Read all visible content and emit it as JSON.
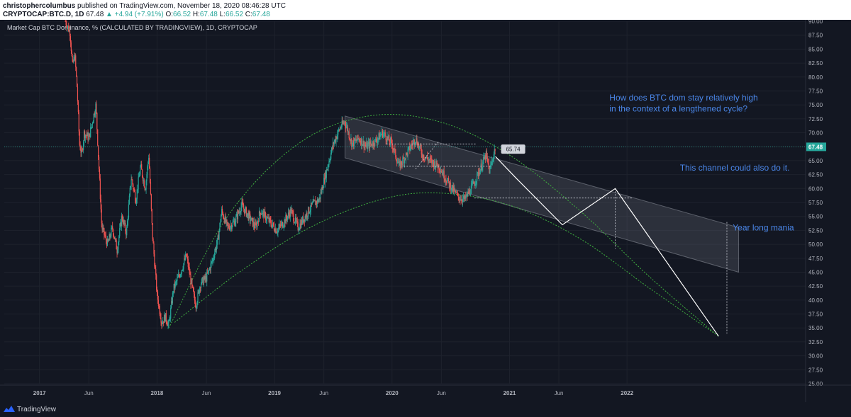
{
  "header": {
    "author": "christophercolumbus",
    "published": "published on TradingView.com, November 18, 2020 08:46:28 UTC",
    "symbol": "CRYPTOCAP:BTC.D, 1D",
    "last": "67.48",
    "change": "▲ +4.94 (+7.91%)",
    "o_label": "O:",
    "o_value": "66.52",
    "h_label": "H:",
    "h_value": "67.48",
    "l_label": "L:",
    "l_value": "66.52",
    "c_label": "C:",
    "c_value": "67.48"
  },
  "footer": {
    "brand": "TradingView"
  },
  "colors": {
    "background": "#131722",
    "axis_text": "#b2b5be",
    "up": "#26a69a",
    "down": "#ef5350",
    "arc": "#3fae3f",
    "annotation": "#4a86e8",
    "price_badge": "#d1d4dc"
  },
  "chart_data": {
    "type": "candlestick",
    "title": "Market Cap BTC Dominance, % (CALCULATED BY TRADINGVIEW), 1D, CRYPTOCAP",
    "y_axis": {
      "min": 25,
      "max": 90,
      "step": 2.5,
      "position": "right",
      "ticks": [
        "90.00",
        "87.50",
        "85.00",
        "82.50",
        "80.00",
        "77.50",
        "75.00",
        "72.50",
        "70.00",
        "67.50",
        "65.00",
        "62.50",
        "60.00",
        "57.50",
        "55.00",
        "52.50",
        "50.00",
        "47.50",
        "45.00",
        "42.50",
        "40.00",
        "37.50",
        "35.00",
        "32.50",
        "30.00",
        "27.50",
        "25.00"
      ]
    },
    "x_axis": {
      "ticks": [
        {
          "label": "2017",
          "t": 2017.0
        },
        {
          "label": "Jun",
          "t": 2017.42
        },
        {
          "label": "2018",
          "t": 2018.0
        },
        {
          "label": "Jun",
          "t": 2018.42
        },
        {
          "label": "2019",
          "t": 2019.0
        },
        {
          "label": "Jun",
          "t": 2019.42
        },
        {
          "label": "2020",
          "t": 2020.0
        },
        {
          "label": "Jun",
          "t": 2020.42
        },
        {
          "label": "2021",
          "t": 2021.0
        },
        {
          "label": "Jun",
          "t": 2021.42
        },
        {
          "label": "2022",
          "t": 2022.0
        }
      ]
    },
    "current_price": 67.48,
    "current_price_label": "67.48",
    "price_path": [
      [
        2017.22,
        90
      ],
      [
        2017.26,
        88
      ],
      [
        2017.28,
        82
      ],
      [
        2017.3,
        84
      ],
      [
        2017.32,
        78
      ],
      [
        2017.34,
        68
      ],
      [
        2017.36,
        66
      ],
      [
        2017.38,
        70
      ],
      [
        2017.42,
        69
      ],
      [
        2017.46,
        73
      ],
      [
        2017.48,
        75
      ],
      [
        2017.53,
        53
      ],
      [
        2017.58,
        50
      ],
      [
        2017.62,
        53
      ],
      [
        2017.66,
        49
      ],
      [
        2017.7,
        55
      ],
      [
        2017.74,
        52
      ],
      [
        2017.78,
        62
      ],
      [
        2017.82,
        58
      ],
      [
        2017.86,
        64
      ],
      [
        2017.9,
        60
      ],
      [
        2017.93,
        66
      ],
      [
        2017.96,
        52
      ],
      [
        2018.0,
        41
      ],
      [
        2018.04,
        36
      ],
      [
        2018.07,
        37
      ],
      [
        2018.1,
        35.5
      ],
      [
        2018.14,
        42
      ],
      [
        2018.2,
        45
      ],
      [
        2018.25,
        48
      ],
      [
        2018.3,
        42
      ],
      [
        2018.33,
        39
      ],
      [
        2018.37,
        43
      ],
      [
        2018.42,
        44
      ],
      [
        2018.47,
        47
      ],
      [
        2018.52,
        51
      ],
      [
        2018.55,
        56
      ],
      [
        2018.6,
        53
      ],
      [
        2018.66,
        54
      ],
      [
        2018.72,
        57
      ],
      [
        2018.78,
        55
      ],
      [
        2018.84,
        53
      ],
      [
        2018.88,
        56
      ],
      [
        2018.92,
        55
      ],
      [
        2018.96,
        54
      ],
      [
        2019.02,
        52.5
      ],
      [
        2019.08,
        54
      ],
      [
        2019.14,
        56
      ],
      [
        2019.2,
        53
      ],
      [
        2019.26,
        55
      ],
      [
        2019.32,
        57
      ],
      [
        2019.38,
        58
      ],
      [
        2019.44,
        63
      ],
      [
        2019.5,
        68
      ],
      [
        2019.56,
        71
      ],
      [
        2019.6,
        72
      ],
      [
        2019.66,
        68
      ],
      [
        2019.72,
        69
      ],
      [
        2019.78,
        67.5
      ],
      [
        2019.86,
        68.5
      ],
      [
        2019.92,
        70
      ],
      [
        2020.0,
        68
      ],
      [
        2020.06,
        64
      ],
      [
        2020.12,
        66
      ],
      [
        2020.2,
        69
      ],
      [
        2020.26,
        66
      ],
      [
        2020.32,
        65
      ],
      [
        2020.4,
        64
      ],
      [
        2020.48,
        61
      ],
      [
        2020.56,
        58.5
      ],
      [
        2020.62,
        58
      ],
      [
        2020.7,
        61
      ],
      [
        2020.76,
        64
      ],
      [
        2020.8,
        66
      ],
      [
        2020.83,
        63
      ],
      [
        2020.88,
        67.48
      ]
    ],
    "channel": {
      "upper": [
        [
          2019.6,
          73
        ],
        [
          2022.95,
          53
        ]
      ],
      "lower": [
        [
          2019.6,
          65.5
        ],
        [
          2022.95,
          45
        ]
      ]
    },
    "arcs": [
      {
        "name": "outer",
        "points": [
          [
            2018.1,
            35
          ],
          [
            2018.6,
            55
          ],
          [
            2019.2,
            68
          ],
          [
            2019.8,
            73
          ],
          [
            2020.4,
            72
          ],
          [
            2021.0,
            66
          ],
          [
            2021.6,
            56
          ],
          [
            2022.2,
            44
          ],
          [
            2022.75,
            34
          ]
        ]
      },
      {
        "name": "inner",
        "points": [
          [
            2018.15,
            36
          ],
          [
            2018.7,
            45
          ],
          [
            2019.3,
            53
          ],
          [
            2019.9,
            58
          ],
          [
            2020.4,
            59.2
          ],
          [
            2021.0,
            57
          ],
          [
            2021.6,
            51
          ],
          [
            2022.2,
            42
          ],
          [
            2022.78,
            33.5
          ]
        ]
      }
    ],
    "projection": [
      [
        2020.88,
        65.74
      ],
      [
        2021.05,
        62
      ],
      [
        2021.45,
        53.5
      ],
      [
        2021.9,
        60
      ],
      [
        2022.78,
        33.5
      ]
    ],
    "projection_label": "65.74",
    "annotations": [
      {
        "text": "How does BTC dom stay relatively high",
        "t": 2021.85,
        "y": 75.8
      },
      {
        "text": "in the context of a lengthened cycle?",
        "t": 2021.85,
        "y": 73.8
      },
      {
        "text": "This channel could also do it.",
        "t": 2022.45,
        "y": 63.2
      },
      {
        "text": "Year long mania",
        "t": 2022.9,
        "y": 52.5
      }
    ]
  }
}
